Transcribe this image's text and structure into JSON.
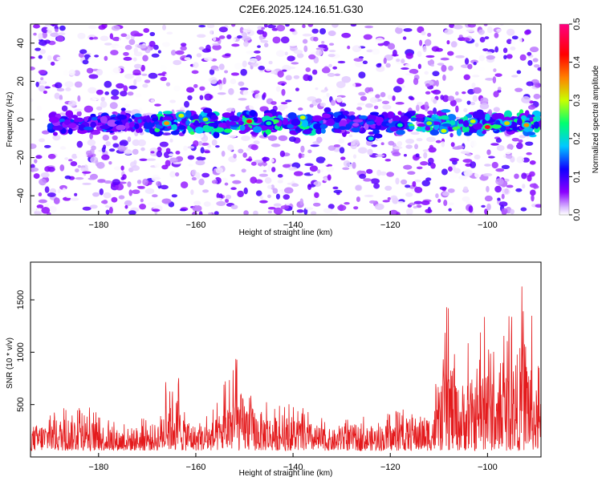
{
  "title": "C2E6.2025.124.16.51.G30",
  "chart_data": [
    {
      "type": "heatmap",
      "xlabel": "Height of straight line (km)",
      "ylabel": "Frequency (Hz)",
      "xlim": [
        -194,
        -89
      ],
      "ylim": [
        -50,
        50
      ],
      "xticks": [
        -180,
        -160,
        -140,
        -120,
        -100
      ],
      "yticks": [
        -40,
        -20,
        0,
        20,
        40
      ],
      "colorbar": {
        "label": "Normalized spectral amplitude",
        "range": [
          0.0,
          0.5
        ],
        "ticks": [
          "0.0",
          "0.1",
          "0.2",
          "0.3",
          "0.4",
          "0.5"
        ],
        "colormap": [
          "#ffffff",
          "#d8b8ff",
          "#8a00ff",
          "#1000ff",
          "#00c8ff",
          "#00ff70",
          "#c8ff00",
          "#ff8000",
          "#ff0000",
          "#ff0080"
        ]
      },
      "band": {
        "center_hz": -2,
        "description_values": [
          {
            "x": -166,
            "y": -2,
            "amp": 0.35
          },
          {
            "x": -163,
            "y": 2,
            "amp": 0.3
          },
          {
            "x": -158,
            "y": 0,
            "amp": 0.28
          },
          {
            "x": -149,
            "y": -1,
            "amp": 0.45
          },
          {
            "x": -145,
            "y": -2,
            "amp": 0.22
          },
          {
            "x": -138,
            "y": 1,
            "amp": 0.3
          },
          {
            "x": -124,
            "y": -10,
            "amp": 0.2
          },
          {
            "x": -118,
            "y": -3,
            "amp": 0.22
          },
          {
            "x": -112,
            "y": -2,
            "amp": 0.28
          },
          {
            "x": -109,
            "y": -6,
            "amp": 0.3
          },
          {
            "x": -103,
            "y": -1,
            "amp": 0.3
          },
          {
            "x": -100,
            "y": -4,
            "amp": 0.45
          },
          {
            "x": -96,
            "y": -2,
            "amp": 0.32
          },
          {
            "x": -92,
            "y": -3,
            "amp": 0.35
          }
        ]
      }
    },
    {
      "type": "line",
      "xlabel": "Height of straight line (km)",
      "ylabel": "SNR (10 * v/v)",
      "xlim": [
        -194,
        -89
      ],
      "ylim": [
        0,
        1860
      ],
      "xticks": [
        -180,
        -160,
        -140,
        -120,
        -100
      ],
      "yticks": [
        500,
        1000,
        1500
      ],
      "series": [
        {
          "color": "#e41a1c",
          "envelope": {
            "x": [
              -194,
              -185,
              -176,
              -168,
              -165,
              -162,
              -160,
              -156,
              -152,
              -148,
              -144,
              -140,
              -136,
              -132,
              -128,
              -124,
              -120,
              -116,
              -112,
              -110,
              -108,
              -106,
              -104,
              -102,
              -100,
              -98,
              -96,
              -94,
              -92,
              -90,
              -89
            ],
            "y": [
              380,
              560,
              330,
              420,
              1010,
              540,
              380,
              470,
              1000,
              650,
              520,
              540,
              420,
              320,
              400,
              380,
              420,
              520,
              560,
              780,
              1600,
              980,
              1180,
              1000,
              1840,
              900,
              1400,
              1500,
              1840,
              960,
              800
            ]
          }
        }
      ]
    }
  ]
}
